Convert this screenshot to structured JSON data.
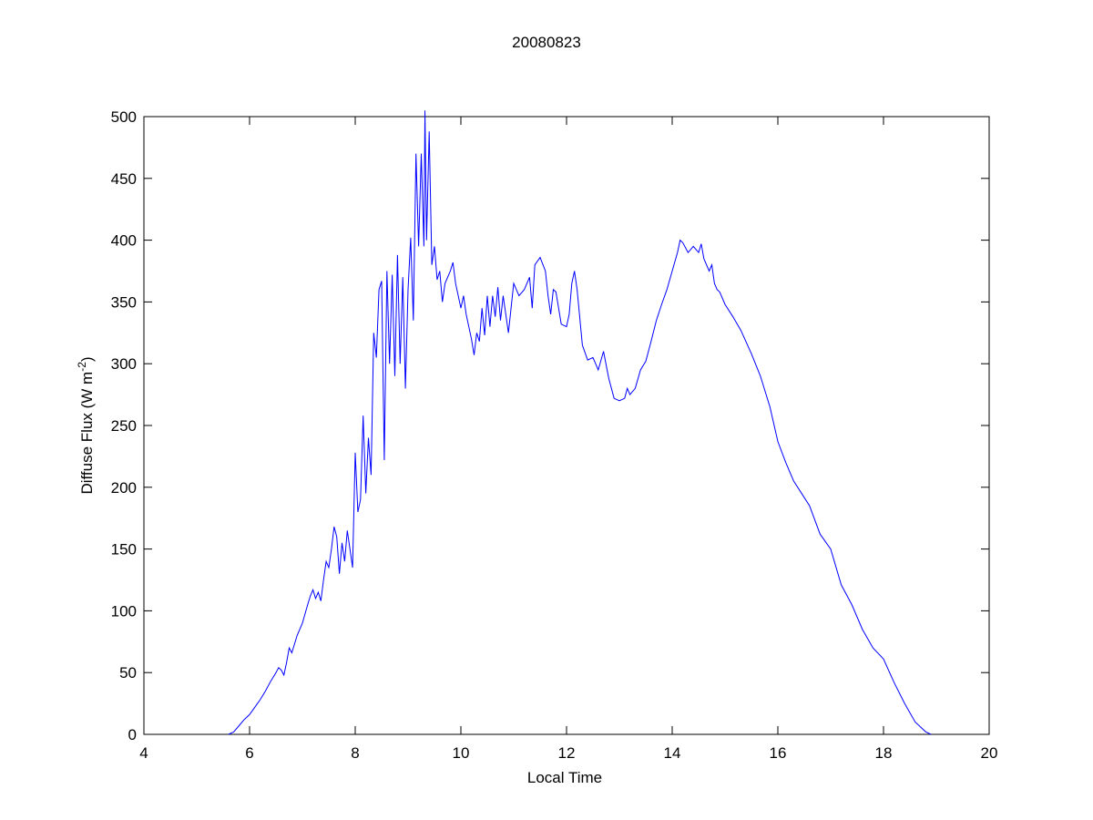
{
  "chart_data": {
    "type": "line",
    "title": "20080823",
    "xlabel": "Local Time",
    "ylabel": [
      "Diffuse Flux (W m",
      "-2",
      ")"
    ],
    "x": [
      5.6,
      5.7,
      5.8,
      5.9,
      6.0,
      6.1,
      6.2,
      6.3,
      6.4,
      6.5,
      6.55,
      6.6,
      6.65,
      6.7,
      6.75,
      6.8,
      6.9,
      7.0,
      7.1,
      7.15,
      7.2,
      7.25,
      7.3,
      7.35,
      7.4,
      7.45,
      7.5,
      7.55,
      7.6,
      7.65,
      7.7,
      7.75,
      7.8,
      7.85,
      7.9,
      7.95,
      8.0,
      8.05,
      8.1,
      8.15,
      8.2,
      8.25,
      8.3,
      8.35,
      8.4,
      8.45,
      8.5,
      8.55,
      8.6,
      8.65,
      8.7,
      8.75,
      8.8,
      8.85,
      8.9,
      8.95,
      9.0,
      9.05,
      9.1,
      9.15,
      9.2,
      9.25,
      9.3,
      9.32,
      9.35,
      9.4,
      9.45,
      9.5,
      9.55,
      9.6,
      9.65,
      9.7,
      9.8,
      9.85,
      9.9,
      10.0,
      10.05,
      10.1,
      10.2,
      10.25,
      10.3,
      10.35,
      10.4,
      10.45,
      10.5,
      10.55,
      10.6,
      10.65,
      10.7,
      10.75,
      10.8,
      10.85,
      10.9,
      10.95,
      11.0,
      11.1,
      11.2,
      11.3,
      11.35,
      11.4,
      11.5,
      11.6,
      11.65,
      11.7,
      11.75,
      11.8,
      11.85,
      11.9,
      12.0,
      12.05,
      12.1,
      12.15,
      12.2,
      12.3,
      12.4,
      12.5,
      12.6,
      12.7,
      12.8,
      12.9,
      13.0,
      13.1,
      13.15,
      13.2,
      13.3,
      13.4,
      13.5,
      13.6,
      13.7,
      13.8,
      13.9,
      14.0,
      14.1,
      14.15,
      14.2,
      14.3,
      14.4,
      14.5,
      14.55,
      14.6,
      14.7,
      14.75,
      14.8,
      14.85,
      14.9,
      15.0,
      15.15,
      15.3,
      15.5,
      15.67,
      15.85,
      16.0,
      16.15,
      16.3,
      16.45,
      16.6,
      16.8,
      17.0,
      17.2,
      17.4,
      17.6,
      17.8,
      18.0,
      18.2,
      18.4,
      18.6,
      18.8,
      18.9
    ],
    "series": [
      {
        "name": "Diffuse Flux",
        "color": "#0000ff",
        "values": [
          0,
          2,
          7,
          12,
          16,
          22,
          28,
          35,
          43,
          50,
          54,
          52,
          48,
          58,
          70,
          66,
          80,
          90,
          105,
          112,
          117,
          110,
          115,
          108,
          125,
          140,
          135,
          150,
          168,
          160,
          130,
          155,
          140,
          165,
          150,
          135,
          228,
          180,
          190,
          258,
          195,
          240,
          210,
          325,
          305,
          360,
          367,
          222,
          375,
          300,
          372,
          290,
          388,
          300,
          370,
          280,
          360,
          402,
          335,
          470,
          395,
          470,
          395,
          505,
          400,
          488,
          380,
          395,
          368,
          375,
          350,
          365,
          375,
          382,
          365,
          345,
          355,
          340,
          320,
          307,
          325,
          318,
          345,
          323,
          355,
          330,
          355,
          338,
          362,
          335,
          355,
          340,
          325,
          345,
          365,
          355,
          360,
          370,
          345,
          380,
          386,
          375,
          355,
          340,
          360,
          358,
          345,
          332,
          330,
          340,
          365,
          375,
          360,
          315,
          303,
          305,
          295,
          310,
          288,
          272,
          270,
          272,
          280,
          275,
          280,
          295,
          302,
          318,
          335,
          348,
          360,
          375,
          390,
          400,
          398,
          390,
          395,
          390,
          397,
          385,
          375,
          380,
          365,
          360,
          358,
          348,
          338,
          327,
          308,
          290,
          265,
          237,
          220,
          205,
          195,
          185,
          162,
          150,
          121,
          105,
          85,
          70,
          61,
          42,
          25,
          10,
          2,
          0
        ]
      }
    ],
    "xlim": [
      4,
      20
    ],
    "xticks": [
      4,
      6,
      8,
      10,
      12,
      14,
      16,
      18,
      20
    ],
    "ylim": [
      0,
      500
    ],
    "yticks": [
      0,
      50,
      100,
      150,
      200,
      250,
      300,
      350,
      400,
      450,
      500
    ],
    "grid": false
  }
}
